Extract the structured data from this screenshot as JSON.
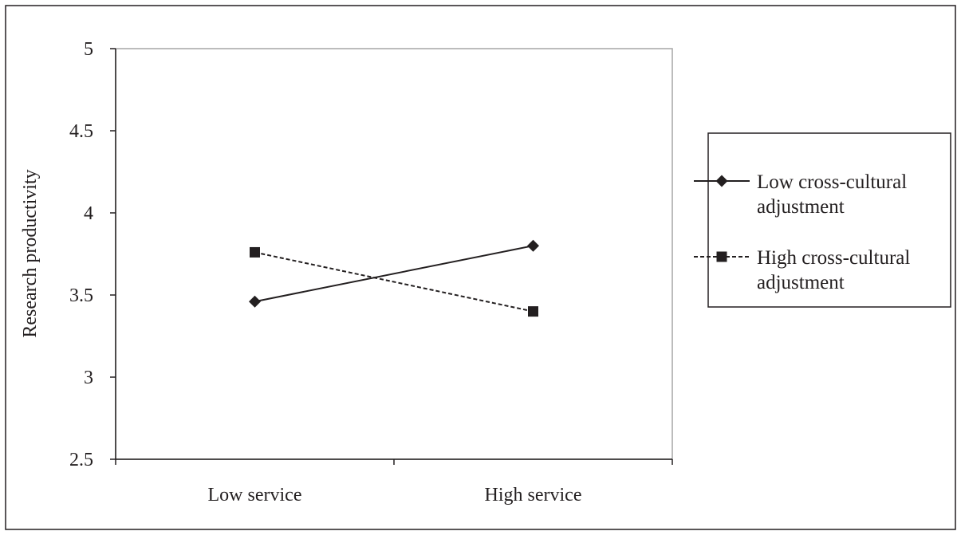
{
  "chart_data": {
    "type": "line",
    "title": "",
    "xlabel": "",
    "ylabel": "Research productivity",
    "categories": [
      "Low service",
      "High service"
    ],
    "ylim": [
      2.5,
      5
    ],
    "yticks": [
      "2.5",
      "3",
      "3.5",
      "4",
      "4.5",
      "5"
    ],
    "grid": false,
    "legend_position": "right",
    "series": [
      {
        "name_lines": [
          "Low cross-cultural",
          "adjustment"
        ],
        "values": [
          3.46,
          3.8
        ],
        "marker": "diamond",
        "line_style": "solid",
        "color": "#231f20"
      },
      {
        "name_lines": [
          "High cross-cultural",
          "adjustment"
        ],
        "values": [
          3.76,
          3.4
        ],
        "marker": "square",
        "line_style": "dashed",
        "color": "#231f20"
      }
    ]
  },
  "colors": {
    "ink": "#231f20",
    "plot_border": "#a6a6a6",
    "background": "#ffffff"
  }
}
